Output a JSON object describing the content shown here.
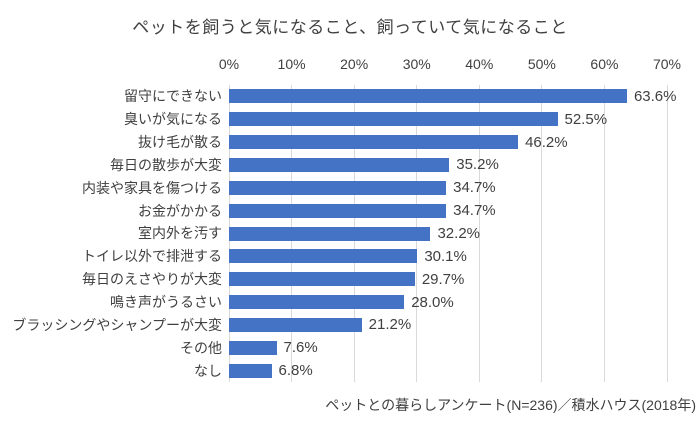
{
  "chart_data": {
    "type": "bar",
    "orientation": "horizontal",
    "title": "ペットを飼うと気になること、飼っていて気になること",
    "categories": [
      "留守にできない",
      "臭いが気になる",
      "抜け毛が散る",
      "毎日の散歩が大変",
      "内装や家具を傷つける",
      "お金がかかる",
      "室内外を汚す",
      "トイレ以外で排泄する",
      "毎日のえさやりが大変",
      "鳴き声がうるさい",
      "ブラッシングやシャンプーが大変",
      "その他",
      "なし"
    ],
    "values": [
      63.6,
      52.5,
      46.2,
      35.2,
      34.7,
      34.7,
      32.2,
      30.1,
      29.7,
      28.0,
      21.2,
      7.6,
      6.8
    ],
    "value_labels": [
      "63.6%",
      "52.5%",
      "46.2%",
      "35.2%",
      "34.7%",
      "34.7%",
      "32.2%",
      "30.1%",
      "29.7%",
      "28.0%",
      "21.2%",
      "7.6%",
      "6.8%"
    ],
    "xlim": [
      0,
      70
    ],
    "x_ticks": [
      "0%",
      "10%",
      "20%",
      "30%",
      "40%",
      "50%",
      "60%",
      "70%"
    ],
    "grid": true,
    "legend": "none",
    "bar_color": "#4472c4",
    "gridline_color": "#d9d9d9",
    "source": "ペットとの暮らしアンケート(N=236)／積水ハウス(2018年)"
  }
}
